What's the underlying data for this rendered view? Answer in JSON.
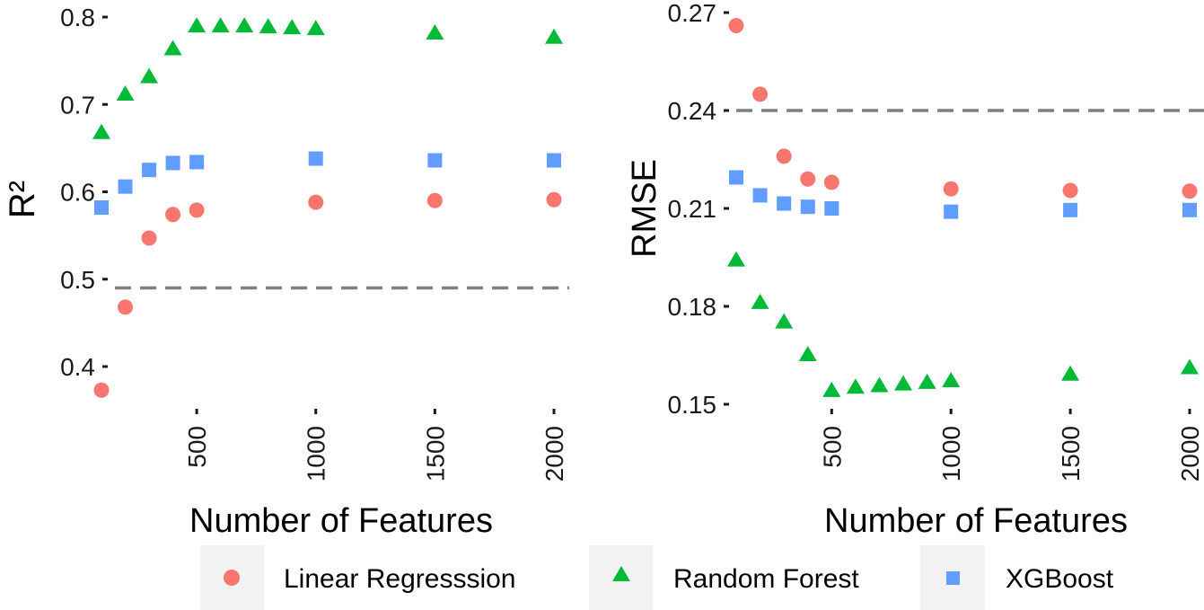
{
  "chart_data": [
    {
      "type": "scatter",
      "xlabel": "Number of Features",
      "ylabel": "R²",
      "xlim": [
        100,
        2000
      ],
      "ylim": [
        0.33,
        0.805
      ],
      "xticks": [
        500,
        1000,
        1500,
        2000
      ],
      "yticks": [
        0.4,
        0.5,
        0.6,
        0.7,
        0.8
      ],
      "ytick_labels": [
        "0.4",
        "0.5",
        "0.6",
        "0.7",
        "0.8"
      ],
      "reference_line": 0.49,
      "grid": false,
      "x": [
        100,
        200,
        300,
        400,
        500,
        600,
        700,
        800,
        900,
        1000,
        1500,
        2000
      ],
      "series": [
        {
          "name": "Linear Regresssion",
          "x": [
            100,
            200,
            300,
            400,
            500,
            1000,
            1500,
            2000
          ],
          "values": [
            0.373,
            0.468,
            0.547,
            0.574,
            0.579,
            0.588,
            0.59,
            0.591
          ]
        },
        {
          "name": "Random Forest",
          "x": [
            100,
            200,
            300,
            400,
            500,
            600,
            700,
            800,
            900,
            1000,
            1500,
            2000
          ],
          "values": [
            0.667,
            0.711,
            0.731,
            0.763,
            0.789,
            0.789,
            0.789,
            0.788,
            0.787,
            0.786,
            0.781,
            0.776
          ]
        },
        {
          "name": "XGBoost",
          "x": [
            100,
            200,
            300,
            400,
            500,
            1000,
            1500,
            2000
          ],
          "values": [
            0.582,
            0.606,
            0.625,
            0.633,
            0.634,
            0.638,
            0.636,
            0.636
          ]
        }
      ]
    },
    {
      "type": "scatter",
      "xlabel": "Number of Features",
      "ylabel": "RMSE",
      "xlim": [
        100,
        2000
      ],
      "ylim": [
        0.143,
        0.272
      ],
      "xticks": [
        500,
        1000,
        1500,
        2000
      ],
      "yticks": [
        0.15,
        0.18,
        0.21,
        0.24,
        0.27
      ],
      "ytick_labels": [
        "0.15",
        "0.18",
        "0.21",
        "0.24",
        "0.27"
      ],
      "reference_line": 0.24,
      "grid": false,
      "x": [
        100,
        200,
        300,
        400,
        500,
        600,
        700,
        800,
        900,
        1000,
        1500,
        2000
      ],
      "series": [
        {
          "name": "Linear Regresssion",
          "x": [
            100,
            200,
            300,
            400,
            500,
            1000,
            1500,
            2000
          ],
          "values": [
            0.266,
            0.245,
            0.226,
            0.219,
            0.218,
            0.216,
            0.2155,
            0.2153
          ]
        },
        {
          "name": "Random Forest",
          "x": [
            100,
            200,
            300,
            400,
            500,
            600,
            700,
            800,
            900,
            1000,
            1500,
            2000
          ],
          "values": [
            0.194,
            0.181,
            0.175,
            0.165,
            0.154,
            0.155,
            0.1555,
            0.156,
            0.1565,
            0.157,
            0.159,
            0.161
          ]
        },
        {
          "name": "XGBoost",
          "x": [
            100,
            200,
            300,
            400,
            500,
            1000,
            1500,
            2000
          ],
          "values": [
            0.2195,
            0.214,
            0.2115,
            0.2105,
            0.21,
            0.209,
            0.2095,
            0.2095
          ]
        }
      ]
    }
  ],
  "legend": {
    "position": "bottom",
    "items": [
      {
        "label": "Linear Regresssion",
        "shape": "circle",
        "color": "#F8766D"
      },
      {
        "label": "Random Forest",
        "shape": "triangle",
        "color": "#00BA38"
      },
      {
        "label": "XGBoost",
        "shape": "square",
        "color": "#619CFF"
      }
    ]
  },
  "colors": {
    "Linear Regresssion": "#F8766D",
    "Random Forest": "#00BA38",
    "XGBoost": "#619CFF",
    "reference_line": "#7f7f7f",
    "legend_key_background": "#F2F2F2"
  }
}
